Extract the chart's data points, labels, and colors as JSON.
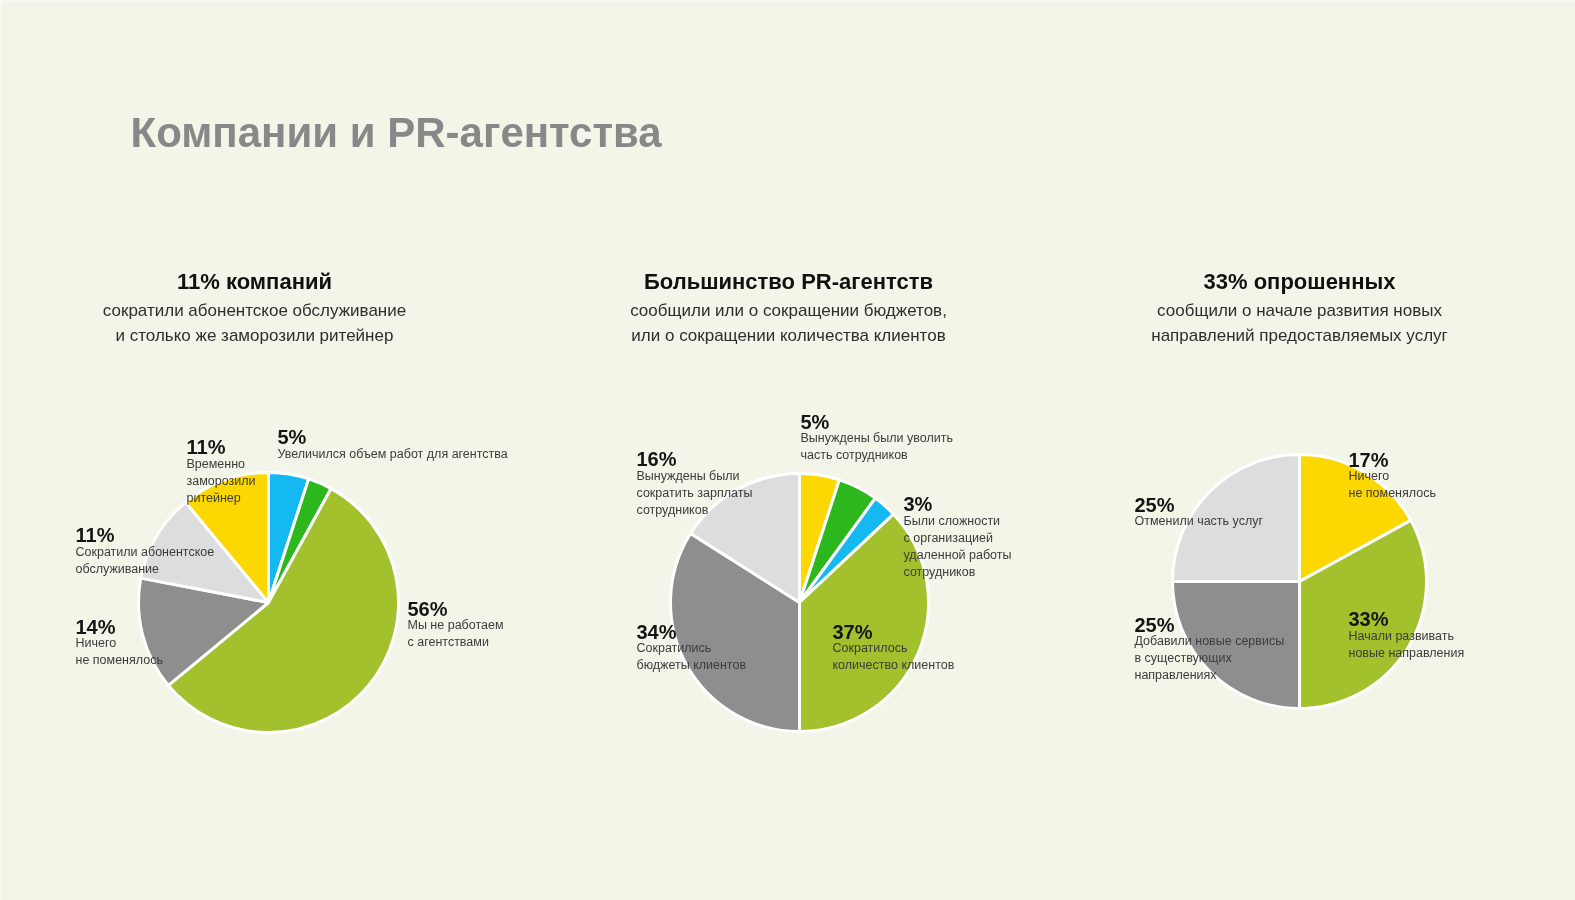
{
  "chart_data": [
    {
      "type": "pie",
      "title": "11% компаний",
      "subtitle": "сократили абонентское обслуживание\nи столько же заморозили ритейнер",
      "annotations": [
        "Компании и PR-агентства"
      ],
      "categories": [
        "Увеличился объем работ для агентства",
        null,
        "Мы не работаем\nс агентствами",
        "Ничего\nне поменялось",
        "Сократили абонентское\nобслуживание",
        "Временно\nзаморозили\nритейнер"
      ],
      "values": [
        5,
        3,
        56,
        14,
        11,
        11
      ],
      "value_labels": [
        "5%",
        null,
        "56%",
        "14%",
        "11%",
        "11%"
      ],
      "colors": [
        "#14b9f2",
        "#2cb81c",
        "#a2c12c",
        "#8e8e8e",
        "#dddddd",
        "#fcd700"
      ]
    },
    {
      "type": "pie",
      "title": "Большинство PR-агентств",
      "subtitle": "сообщили или о сокращении бюджетов,\nили о сокращении количества клиентов",
      "categories": [
        "Вынуждены были уволить\nчасть сотрудников",
        null,
        "Были сложности\nс организацией\nудаленной работы\nсотрудников",
        "Сократилось\nколичество клиентов",
        "Сократились\nбюджеты клиентов",
        "Вынуждены были\nсократить зарплаты\nсотрудников"
      ],
      "values": [
        5,
        5,
        3,
        37,
        34,
        16
      ],
      "value_labels": [
        "5%",
        null,
        "3%",
        "37%",
        "34%",
        "16%"
      ],
      "colors": [
        "#fcd700",
        "#2cb81c",
        "#14b9f2",
        "#a2c12c",
        "#8e8e8e",
        "#dddddd"
      ]
    },
    {
      "type": "pie",
      "title": "33% опрошенных",
      "subtitle": "сообщили о начале развития новых\nнаправлений предоставляемых услуг",
      "categories": [
        "Ничего\nне поменялось",
        "Начали развивать\nновые направления",
        "Добавили новые сервисы\nв существующих\nнаправлениях",
        "Отменили часть услуг"
      ],
      "values": [
        17,
        33,
        25,
        25
      ],
      "value_labels": [
        "17%",
        "33%",
        "25%",
        "25%"
      ],
      "colors": [
        "#fcd700",
        "#a2c12c",
        "#8e8e8e",
        "#dddddd"
      ]
    }
  ]
}
